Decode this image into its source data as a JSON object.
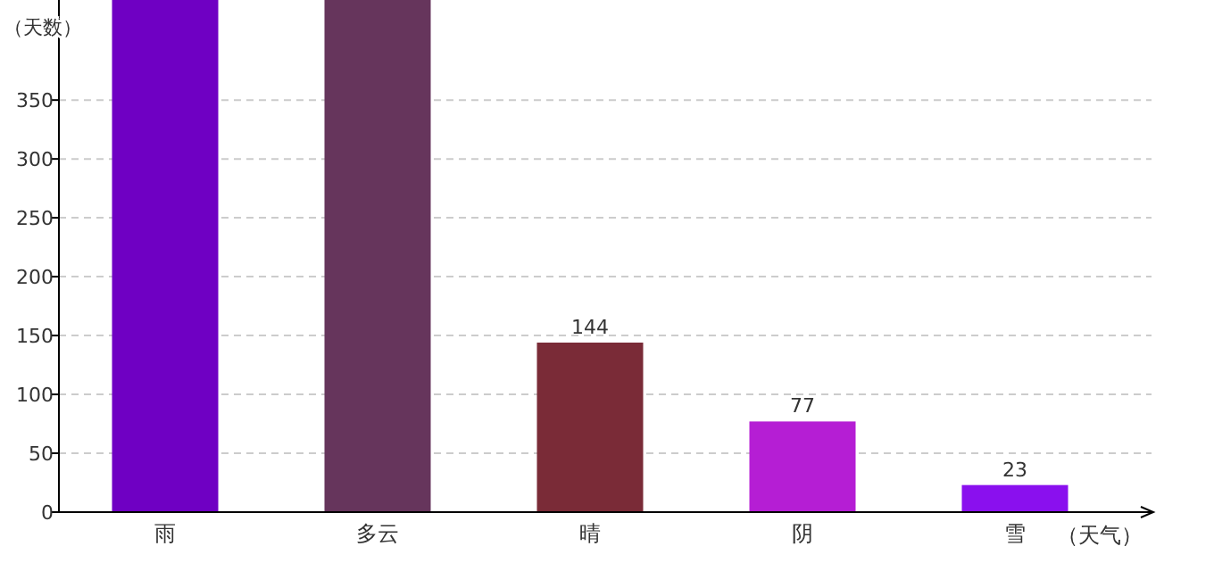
{
  "chart_data": {
    "type": "bar",
    "ylabel": "（天数）",
    "xlabel": "（天气）",
    "categories": [
      "雨",
      "多云",
      "晴",
      "阴",
      "雪"
    ],
    "values": [
      435,
      435,
      144,
      77,
      23
    ],
    "colors": [
      "#6f00c3",
      "#66355c",
      "#7a2b37",
      "#b51ed4",
      "#8a10ee"
    ],
    "value_labels": [
      null,
      null,
      "144",
      "77",
      "23"
    ],
    "ylim": [
      0,
      435
    ],
    "yticks": [
      0,
      50,
      100,
      150,
      200,
      250,
      300,
      350
    ],
    "grid": "y"
  }
}
